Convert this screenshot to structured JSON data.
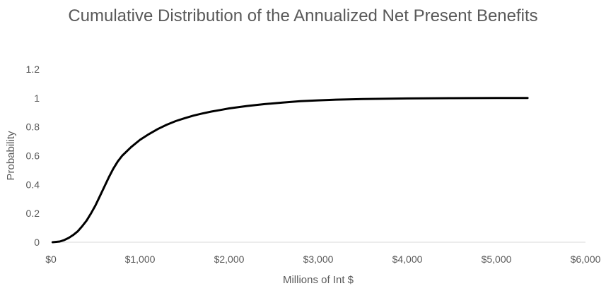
{
  "chart_data": {
    "type": "line",
    "title": "Cumulative Distribution of the Annualized Net Present Benefits",
    "xlabel": "Millions of Int $",
    "ylabel": "Probability",
    "xlim": [
      0,
      6000
    ],
    "ylim": [
      0,
      1.2
    ],
    "x_ticks": [
      "$0",
      "$1,000",
      "$2,000",
      "$3,000",
      "$4,000",
      "$5,000",
      "$6,000"
    ],
    "y_ticks": [
      "0",
      "0.2",
      "0.4",
      "0.6",
      "0.8",
      "1",
      "1.2"
    ],
    "grid": false,
    "legend": "none",
    "line_color": "#000000",
    "series": [
      {
        "x": [
          20,
          100,
          150,
          200,
          250,
          300,
          350,
          400,
          450,
          500,
          550,
          600,
          650,
          700,
          750,
          800,
          900,
          1000,
          1100,
          1200,
          1300,
          1400,
          1500,
          1600,
          1700,
          1800,
          1900,
          2000,
          2200,
          2400,
          2600,
          2800,
          3000,
          3200,
          3500,
          4000,
          4500,
          5000,
          5350
        ],
        "y": [
          0.0,
          0.005,
          0.015,
          0.03,
          0.05,
          0.075,
          0.11,
          0.15,
          0.2,
          0.255,
          0.32,
          0.385,
          0.45,
          0.51,
          0.56,
          0.6,
          0.66,
          0.71,
          0.75,
          0.785,
          0.815,
          0.84,
          0.86,
          0.878,
          0.893,
          0.906,
          0.917,
          0.928,
          0.945,
          0.958,
          0.969,
          0.978,
          0.984,
          0.989,
          0.993,
          0.997,
          0.999,
          1.0,
          1.0
        ]
      }
    ]
  }
}
